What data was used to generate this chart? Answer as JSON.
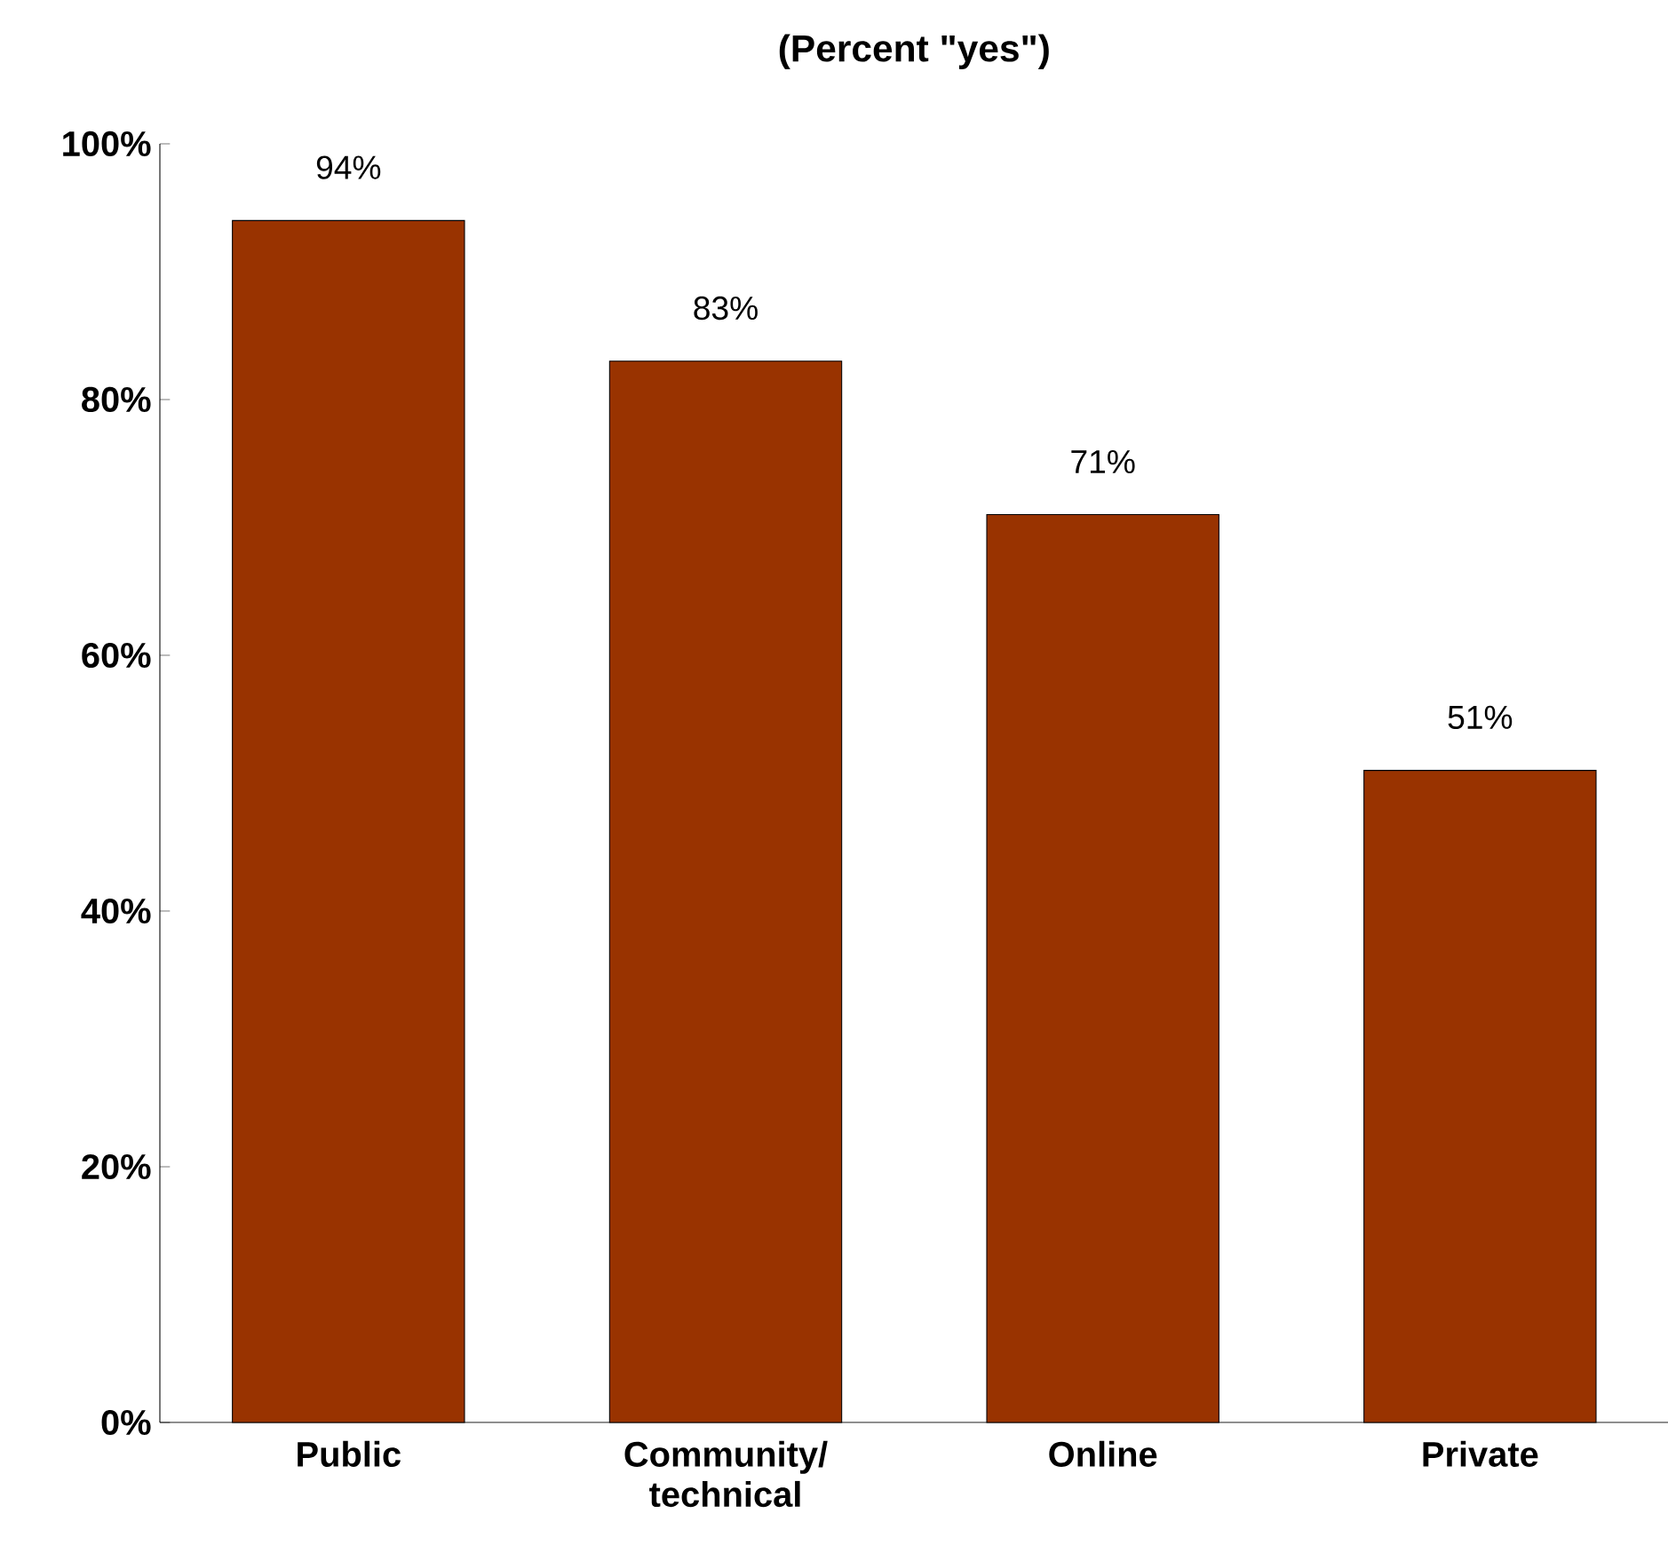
{
  "chart_data": {
    "type": "bar",
    "title": "(Percent \"yes\")",
    "categories": [
      "Public",
      "Community/ technical",
      "Online",
      "Private"
    ],
    "values": [
      94,
      83,
      71,
      51
    ],
    "value_labels": [
      "94%",
      "83%",
      "71%",
      "51%"
    ],
    "color": "#993300",
    "ylim": [
      0,
      100
    ],
    "yticks": [
      {
        "value": 0,
        "label": "0%"
      },
      {
        "value": 20,
        "label": "20%"
      },
      {
        "value": 40,
        "label": "40%"
      },
      {
        "value": 60,
        "label": "60%"
      },
      {
        "value": 80,
        "label": "80%"
      },
      {
        "value": 100,
        "label": "100%"
      }
    ]
  }
}
